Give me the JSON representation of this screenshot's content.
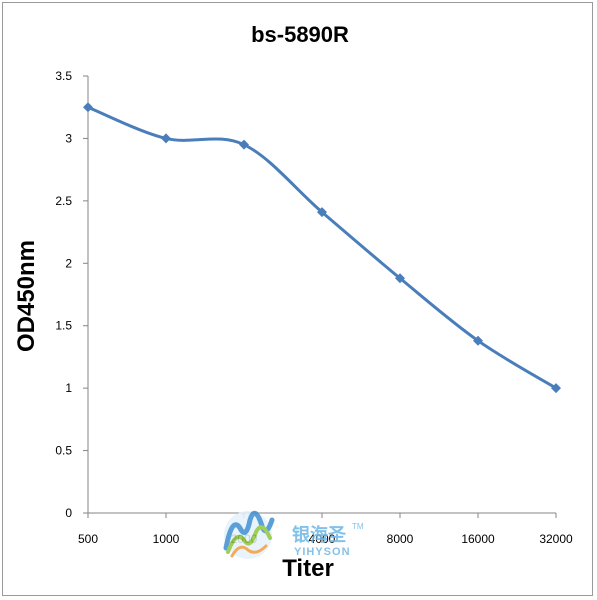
{
  "chart_data": {
    "type": "line",
    "title": "bs-5890R",
    "xlabel": "Titer",
    "ylabel": "OD450nm",
    "categories": [
      "500",
      "1000",
      "2000",
      "4000",
      "8000",
      "16000",
      "32000"
    ],
    "series": [
      {
        "values": [
          3.25,
          3.0,
          2.95,
          2.41,
          1.88,
          1.38,
          1.0
        ]
      }
    ],
    "ylim": [
      0,
      3.5
    ],
    "yticks": [
      0,
      0.5,
      1,
      1.5,
      2,
      2.5,
      3,
      3.5
    ],
    "grid": false,
    "legend": "none",
    "series_color": "#4a7ebb"
  },
  "watermark": {
    "brand_cn": "银海圣",
    "brand_en": "YIHYSON",
    "tm": "TM"
  }
}
